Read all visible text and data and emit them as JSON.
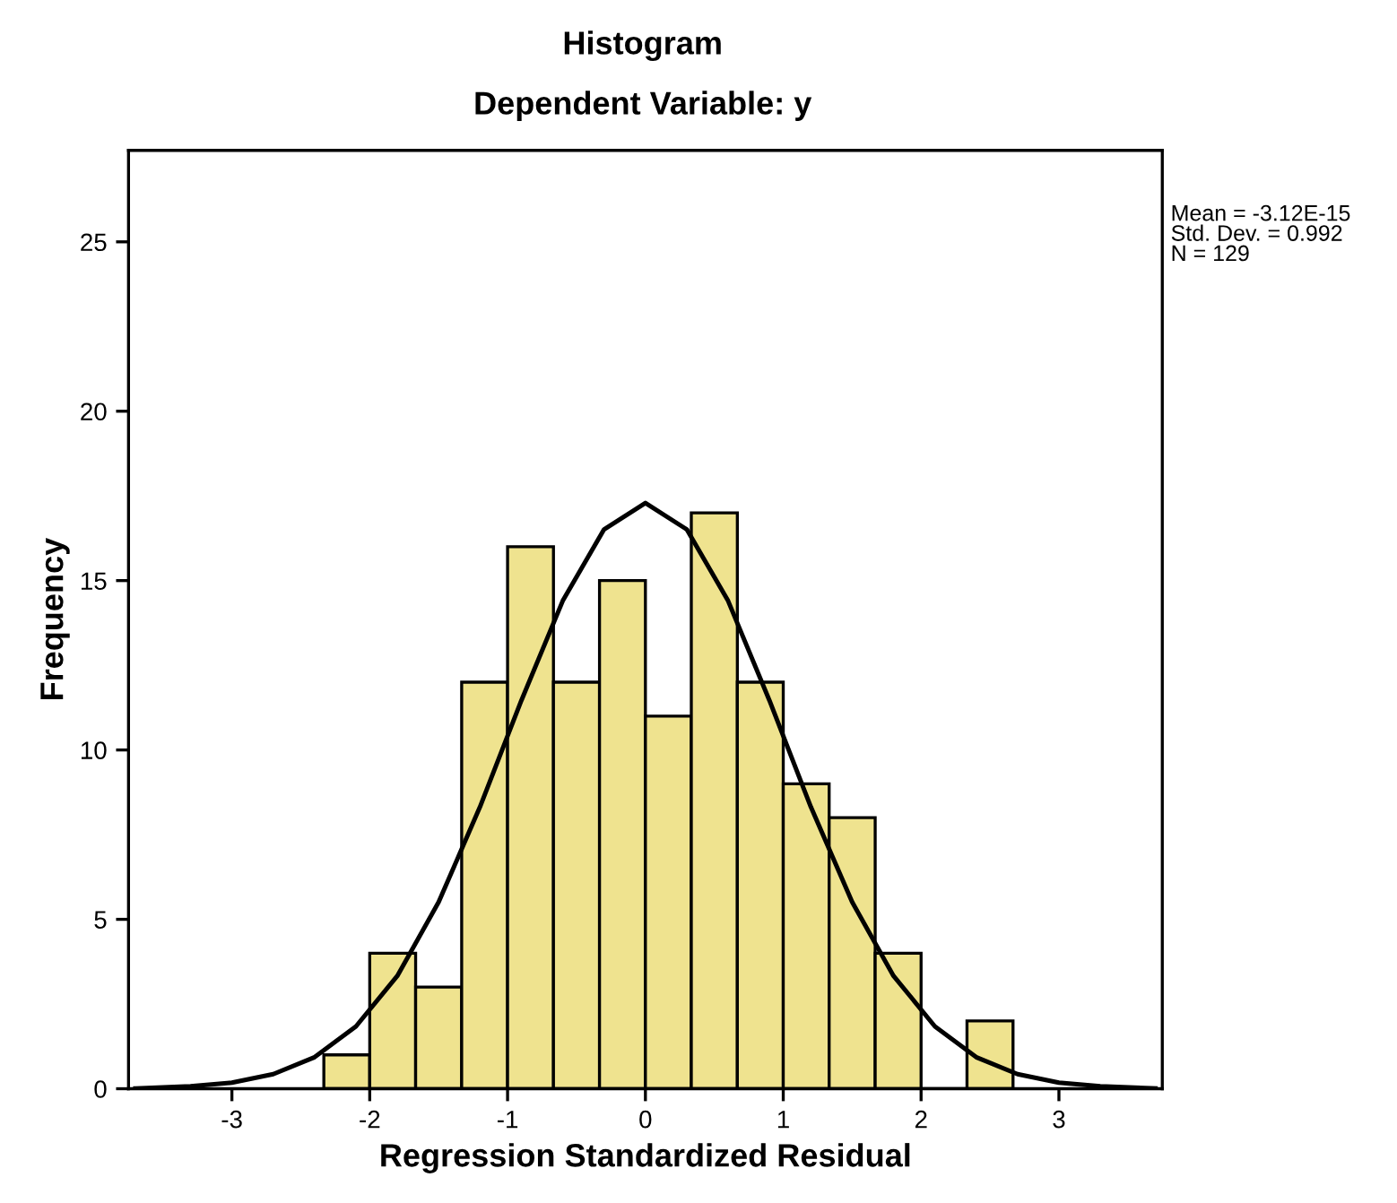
{
  "chart_data": {
    "type": "histogram",
    "title": "Histogram",
    "subtitle": "Dependent Variable: y",
    "xlabel": "Regression Standardized Residual",
    "ylabel": "Frequency",
    "annotations": [
      "Mean = -3.12E-15\nStd. Dev. = 0.992\nN = 129"
    ],
    "series": [
      {
        "type": "histogram",
        "color": "#efe38f",
        "bins": [
          -2.333,
          -2.0,
          -1.667,
          -1.333,
          -1.0,
          -0.667,
          -0.333,
          0.0,
          0.333,
          0.667,
          1.0,
          1.333,
          1.667,
          2.0,
          2.333,
          2.667
        ],
        "values": [
          1,
          4,
          3,
          12,
          16,
          12,
          15,
          11,
          17,
          12,
          9,
          8,
          4,
          0,
          2
        ]
      },
      {
        "type": "line",
        "color": "#000000",
        "x": [
          -3.7,
          -3.3,
          -3.0,
          -2.7,
          -2.4,
          -2.1,
          -1.8,
          -1.5,
          -1.2,
          -0.9,
          -0.6,
          -0.3,
          0.0,
          0.3,
          0.6,
          0.9,
          1.2,
          1.5,
          1.8,
          2.1,
          2.4,
          2.7,
          3.0,
          3.3,
          3.7
        ],
        "values": [
          0.01,
          0.07,
          0.18,
          0.43,
          0.93,
          1.84,
          3.33,
          5.51,
          8.32,
          11.46,
          14.4,
          16.51,
          17.29,
          16.51,
          14.4,
          11.46,
          8.32,
          5.51,
          3.33,
          1.84,
          0.93,
          0.43,
          0.18,
          0.07,
          0.01
        ]
      }
    ],
    "xlim": [
      -3.75,
      3.75
    ],
    "ylim": [
      0,
      27.7
    ],
    "xticks": [
      -3,
      -2,
      -1,
      0,
      1,
      2,
      3
    ],
    "yticks": [
      0,
      5,
      10,
      15,
      20,
      25
    ]
  }
}
